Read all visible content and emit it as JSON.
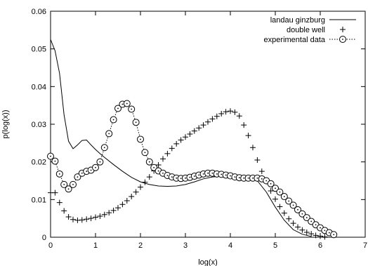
{
  "chart_data": {
    "type": "line",
    "title": "",
    "xlabel": "log(x)",
    "ylabel": "p(log(x))",
    "xlim": [
      0,
      7
    ],
    "ylim": [
      0,
      0.06
    ],
    "xticks": [
      "0",
      "1",
      "2",
      "3",
      "4",
      "5",
      "6",
      "7"
    ],
    "yticks": [
      "0",
      "0.01",
      "0.02",
      "0.03",
      "0.04",
      "0.05",
      "0.06"
    ],
    "legend_position": "top-right",
    "grid": false,
    "series": [
      {
        "name": "landau ginzburg",
        "style": "solid-line",
        "x": [
          0,
          0.1,
          0.2,
          0.3,
          0.4,
          0.5,
          0.6,
          0.7,
          0.8,
          0.9,
          1.0,
          1.1,
          1.2,
          1.4,
          1.6,
          1.8,
          2.0,
          2.2,
          2.4,
          2.6,
          2.8,
          3.0,
          3.2,
          3.4,
          3.6,
          3.8,
          4.0,
          4.2,
          4.4,
          4.6,
          4.8,
          5.0,
          5.2,
          5.4,
          5.6,
          5.8
        ],
        "y": [
          0.0525,
          0.0495,
          0.0435,
          0.0325,
          0.0255,
          0.0235,
          0.0245,
          0.0257,
          0.0258,
          0.0245,
          0.0233,
          0.0222,
          0.0212,
          0.0193,
          0.0175,
          0.0159,
          0.0147,
          0.014,
          0.0136,
          0.0135,
          0.0136,
          0.014,
          0.0147,
          0.0155,
          0.016,
          0.0162,
          0.0162,
          0.016,
          0.0157,
          0.015,
          0.012,
          0.008,
          0.0045,
          0.002,
          0.0008,
          0.0002
        ]
      },
      {
        "name": "double well",
        "style": "plus-markers",
        "x": [
          0,
          0.1,
          0.2,
          0.3,
          0.4,
          0.5,
          0.6,
          0.7,
          0.8,
          0.9,
          1.0,
          1.1,
          1.2,
          1.3,
          1.4,
          1.5,
          1.6,
          1.7,
          1.8,
          1.9,
          2.0,
          2.1,
          2.2,
          2.3,
          2.4,
          2.5,
          2.6,
          2.7,
          2.8,
          2.9,
          3.0,
          3.1,
          3.2,
          3.3,
          3.4,
          3.5,
          3.6,
          3.7,
          3.8,
          3.9,
          4.0,
          4.1,
          4.2,
          4.3,
          4.4,
          4.5,
          4.6,
          4.7,
          4.8,
          4.9,
          5.0,
          5.1,
          5.2,
          5.3,
          5.4,
          5.5,
          5.6,
          5.7,
          5.8,
          5.9,
          6.0,
          6.1
        ],
        "y": [
          0.0118,
          0.0118,
          0.0092,
          0.007,
          0.0054,
          0.0047,
          0.0045,
          0.0046,
          0.0048,
          0.005,
          0.0053,
          0.0056,
          0.006,
          0.0065,
          0.0071,
          0.0078,
          0.0087,
          0.0097,
          0.0108,
          0.012,
          0.0133,
          0.0146,
          0.016,
          0.0176,
          0.0192,
          0.0208,
          0.0222,
          0.0236,
          0.0248,
          0.0258,
          0.0266,
          0.0274,
          0.0282,
          0.029,
          0.0298,
          0.0306,
          0.0314,
          0.0321,
          0.0328,
          0.0333,
          0.0335,
          0.0332,
          0.0322,
          0.0298,
          0.027,
          0.0238,
          0.0205,
          0.0175,
          0.0148,
          0.0123,
          0.0101,
          0.0081,
          0.0064,
          0.0049,
          0.0037,
          0.0027,
          0.0019,
          0.0013,
          0.0009,
          0.0005,
          0.0003,
          0.0001
        ]
      },
      {
        "name": "experimental data",
        "style": "dotted-line-circle-markers",
        "x": [
          0,
          0.1,
          0.2,
          0.3,
          0.4,
          0.5,
          0.6,
          0.7,
          0.8,
          0.9,
          1.0,
          1.1,
          1.2,
          1.3,
          1.4,
          1.5,
          1.6,
          1.7,
          1.8,
          1.9,
          2.0,
          2.1,
          2.2,
          2.3,
          2.4,
          2.5,
          2.6,
          2.7,
          2.8,
          2.9,
          3.0,
          3.1,
          3.2,
          3.3,
          3.4,
          3.5,
          3.6,
          3.7,
          3.8,
          3.9,
          4.0,
          4.1,
          4.2,
          4.3,
          4.4,
          4.5,
          4.6,
          4.7,
          4.8,
          4.9,
          5.0,
          5.1,
          5.2,
          5.3,
          5.4,
          5.5,
          5.6,
          5.7,
          5.8,
          5.9,
          6.0,
          6.1,
          6.2,
          6.3
        ],
        "y": [
          0.0215,
          0.0202,
          0.0168,
          0.014,
          0.0128,
          0.014,
          0.016,
          0.017,
          0.0175,
          0.0178,
          0.0185,
          0.02,
          0.0238,
          0.0275,
          0.0312,
          0.0342,
          0.0353,
          0.0355,
          0.034,
          0.0305,
          0.026,
          0.0225,
          0.02,
          0.0185,
          0.0176,
          0.017,
          0.0164,
          0.016,
          0.0157,
          0.0156,
          0.0157,
          0.0159,
          0.0162,
          0.0165,
          0.0168,
          0.017,
          0.017,
          0.0168,
          0.0167,
          0.0165,
          0.0163,
          0.016,
          0.0158,
          0.0157,
          0.0157,
          0.0157,
          0.0157,
          0.0155,
          0.015,
          0.0142,
          0.013,
          0.012,
          0.0108,
          0.0096,
          0.0085,
          0.0073,
          0.0062,
          0.0052,
          0.0042,
          0.0033,
          0.0025,
          0.0018,
          0.0012,
          0.0007
        ]
      }
    ]
  }
}
